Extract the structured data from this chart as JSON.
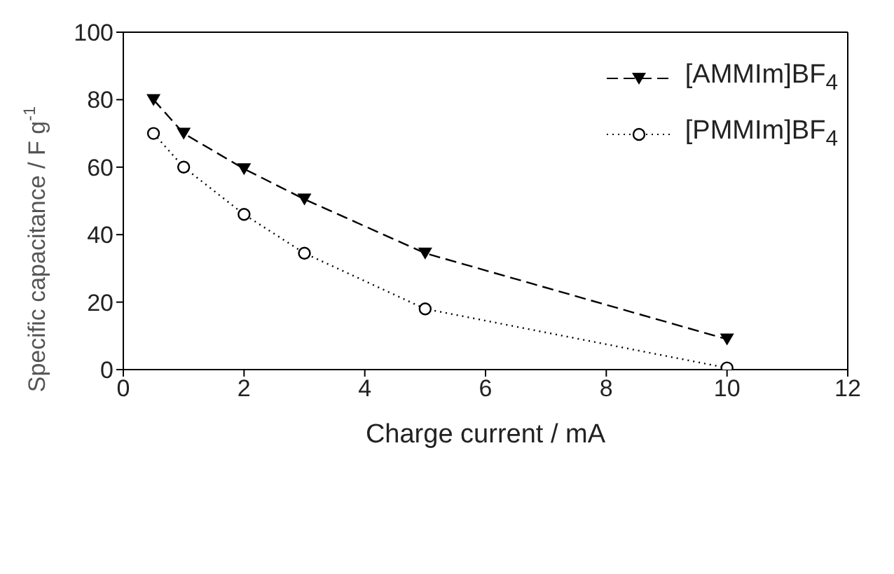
{
  "chart_data": {
    "type": "line",
    "xlabel": "Charge current / mA",
    "ylabel": "Specific capacitance / F g$^{-1}$",
    "x": [
      0.5,
      1,
      2,
      3,
      5,
      10
    ],
    "series": [
      {
        "name": "[AMMIm]BF$_{4}$",
        "color": "#000000",
        "values": [
          80,
          70,
          59.5,
          50.5,
          34.5,
          9
        ],
        "marker": "triangle",
        "line_style": "dashed"
      },
      {
        "name": "[PMMIm]BF$_{4}$",
        "color": "#000000",
        "values": [
          70,
          60,
          46,
          34.5,
          18,
          0.5
        ],
        "marker": "circle",
        "line_style": "dotted"
      }
    ],
    "xlim": [
      0,
      12
    ],
    "xticks": [
      0,
      2,
      4,
      6,
      8,
      10,
      12
    ],
    "ylim": [
      0,
      100
    ],
    "yticks": [
      0,
      20,
      40,
      60,
      80,
      100
    ],
    "grid": false,
    "legend": "top right"
  }
}
